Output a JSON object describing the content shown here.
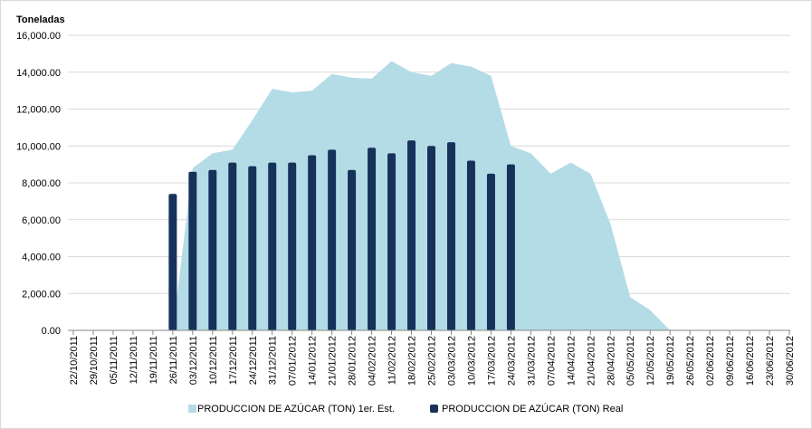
{
  "chart_data": {
    "type": "bar-area",
    "y_label": "Toneladas",
    "categories": [
      "22/10/2011",
      "29/10/2011",
      "05/11/2011",
      "12/11/2011",
      "19/11/2011",
      "26/11/2011",
      "03/12/2011",
      "10/12/2011",
      "17/12/2011",
      "24/12/2011",
      "31/12/2011",
      "07/01/2012",
      "14/01/2012",
      "21/01/2012",
      "28/01/2012",
      "04/02/2012",
      "11/02/2012",
      "18/02/2012",
      "25/02/2012",
      "03/03/2012",
      "10/03/2012",
      "17/03/2012",
      "24/03/2012",
      "31/03/2012",
      "07/04/2012",
      "14/04/2012",
      "21/04/2012",
      "28/04/2012",
      "05/05/2012",
      "12/05/2012",
      "19/05/2012",
      "26/05/2012",
      "02/06/2012",
      "09/06/2012",
      "16/06/2012",
      "23/06/2012",
      "30/06/2012"
    ],
    "series": [
      {
        "name": "PRODUCCION DE AZÚCAR (TON) 1er. Est.",
        "kind": "area",
        "color": "#b4dce6",
        "values": [
          null,
          null,
          null,
          null,
          null,
          0,
          8800,
          9600,
          9800,
          11400,
          13100,
          12900,
          13000,
          13900,
          13700,
          13650,
          14600,
          14000,
          13800,
          14500,
          14300,
          13800,
          10000,
          9600,
          8500,
          9100,
          8500,
          5800,
          1800,
          1100,
          0,
          null,
          null,
          null,
          null,
          null,
          null
        ]
      },
      {
        "name": "PRODUCCION DE AZÚCAR (TON) Real",
        "kind": "bar",
        "color": "#17325a",
        "values": [
          null,
          null,
          null,
          null,
          null,
          7400,
          8600,
          8700,
          9100,
          8900,
          9100,
          9100,
          9500,
          9800,
          8700,
          9900,
          9600,
          10300,
          10000,
          10200,
          9200,
          8500,
          9000,
          null,
          null,
          null,
          null,
          null,
          null,
          null,
          null,
          null,
          null,
          null,
          null,
          null,
          null
        ]
      }
    ],
    "ylim": [
      0,
      16000
    ],
    "yticks": [
      {
        "value": 0,
        "label": "0.00"
      },
      {
        "value": 2000,
        "label": "2,000.00"
      },
      {
        "value": 4000,
        "label": "4,000.00"
      },
      {
        "value": 6000,
        "label": "6,000.00"
      },
      {
        "value": 8000,
        "label": "8,000.00"
      },
      {
        "value": 10000,
        "label": "10,000.00"
      },
      {
        "value": 12000,
        "label": "12,000.00"
      },
      {
        "value": 14000,
        "label": "14,000.00"
      },
      {
        "value": 16000,
        "label": "16,000.00"
      }
    ],
    "grid": true,
    "legend": "bottom"
  }
}
